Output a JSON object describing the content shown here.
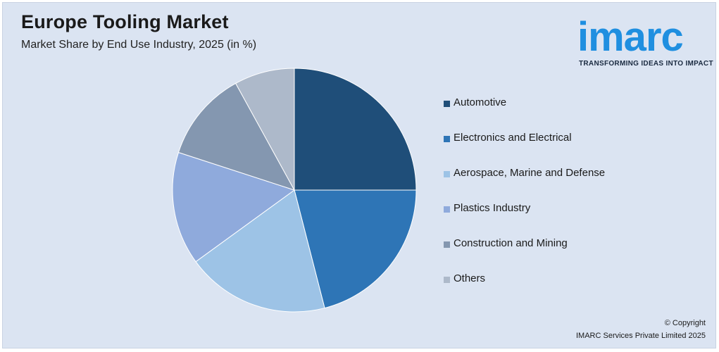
{
  "header": {
    "title": "Europe Tooling Market",
    "subtitle": "Market Share by End Use Industry, 2025 (in %)"
  },
  "logo": {
    "wordmark": "imarc",
    "tagline": "TRANSFORMING IDEAS INTO IMPACT",
    "color": "#1f8fe0"
  },
  "chart_data": {
    "type": "pie",
    "title": "Europe Tooling Market",
    "subtitle": "Market Share by End Use Industry, 2025 (in %)",
    "legend_position": "right",
    "labels": [
      "Automotive",
      "Electronics and Electrical",
      "Aerospace, Marine and Defense",
      "Plastics Industry",
      "Construction and Mining",
      "Others"
    ],
    "values": [
      25,
      21,
      19,
      15,
      12,
      8
    ],
    "colors": [
      "#1f4e79",
      "#2e75b6",
      "#9dc3e6",
      "#8faadc",
      "#8497b0",
      "#adb9ca"
    ]
  },
  "footer": {
    "copyright_line1": "© Copyright",
    "copyright_line2": "IMARC Services Private Limited 2025"
  }
}
